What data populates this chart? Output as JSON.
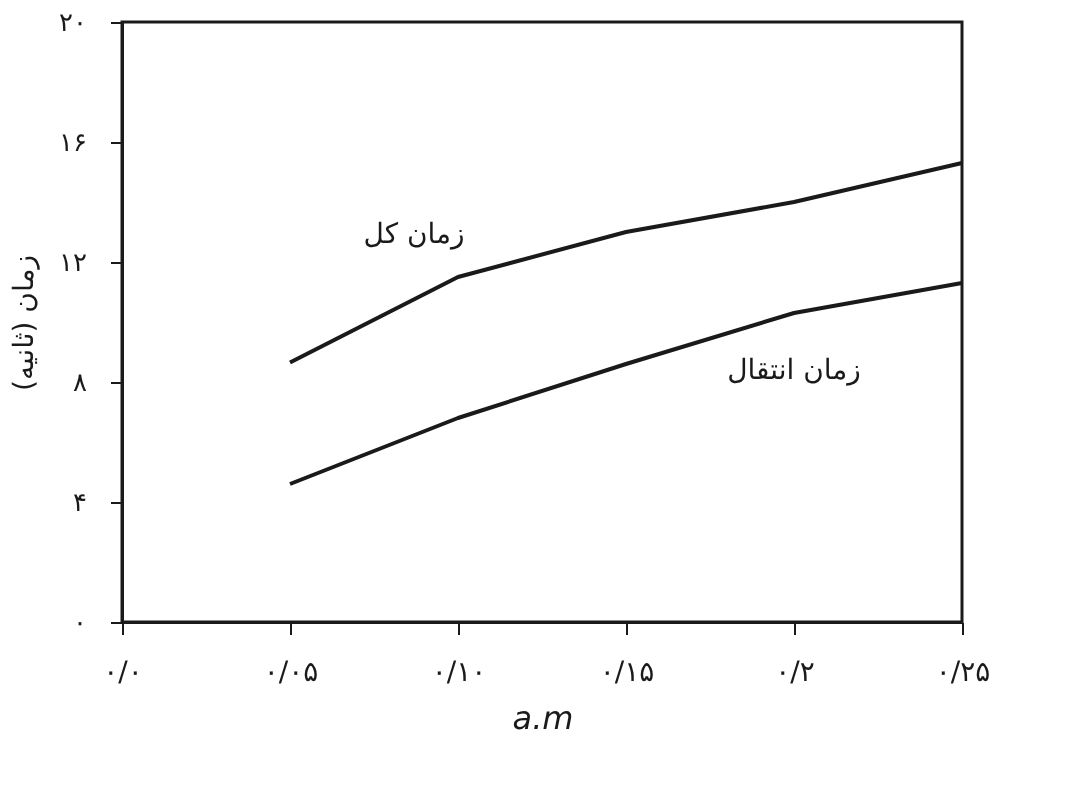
{
  "chart_data": {
    "type": "line",
    "xlabel": "a.m",
    "ylabel": "زمان (ثانیه)",
    "categories": [
      "۰/۰",
      "۰/۰۵",
      "۰/۱۰",
      "۰/۱۵",
      "۰/۲",
      "۰/۲۵"
    ],
    "series": [
      {
        "name": "زمان کل",
        "color": "#1a1a1a",
        "values": [
          null,
          8.65,
          11.5,
          13.0,
          14.0,
          15.3
        ]
      },
      {
        "name": "زمان انتقال",
        "color": "#1a1a1a",
        "values": [
          null,
          4.6,
          6.8,
          8.6,
          10.3,
          11.3
        ]
      }
    ],
    "ylim": [
      0,
      20
    ],
    "yticks": [
      {
        "value": 0,
        "label": "۰"
      },
      {
        "value": 4,
        "label": "۴"
      },
      {
        "value": 8,
        "label": "۸"
      },
      {
        "value": 12,
        "label": "۱۲"
      },
      {
        "value": 16,
        "label": "۱۶"
      },
      {
        "value": 20,
        "label": "۲۰"
      }
    ],
    "grid": false,
    "marker": "none",
    "line_style": "solid"
  }
}
